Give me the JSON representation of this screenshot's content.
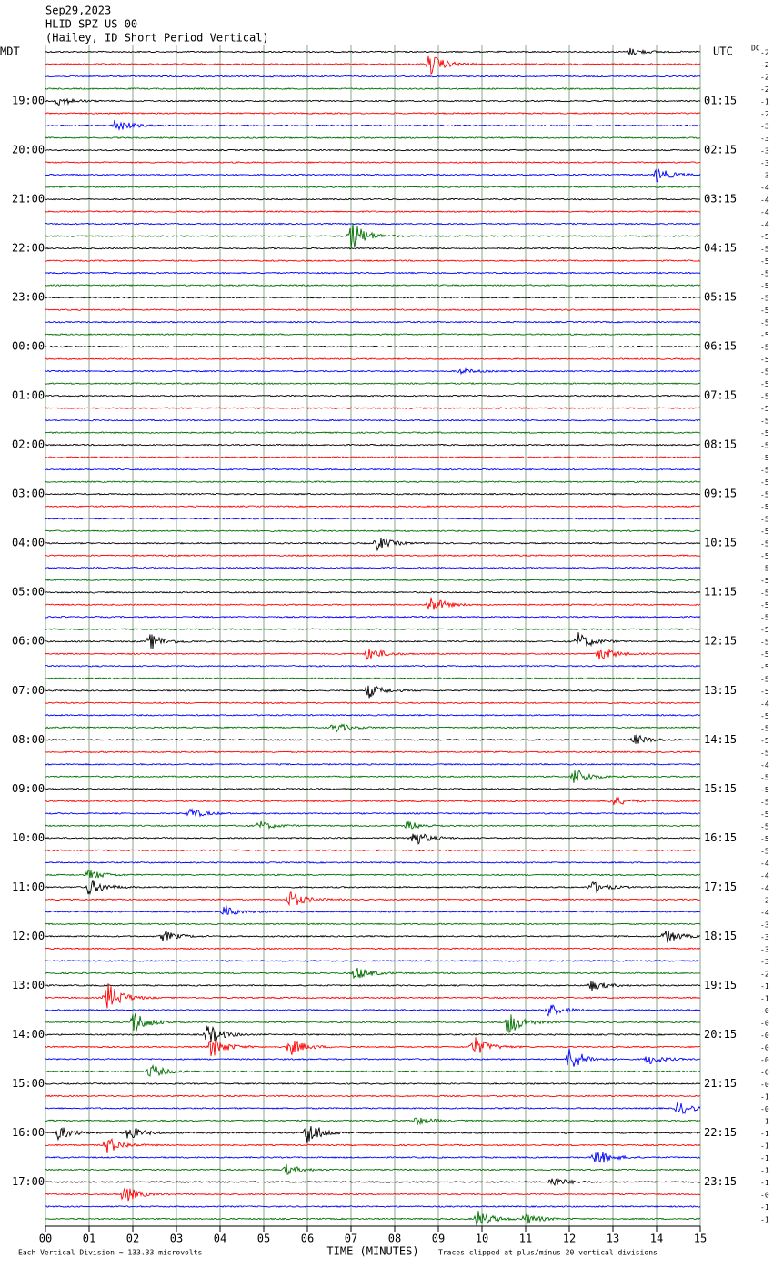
{
  "chart_data": {
    "type": "helicorder",
    "title": [
      "Sep29,2023",
      "HLID SPZ US 00",
      "(Hailey, ID Short Period Vertical)"
    ],
    "left_timezone": "MDT",
    "right_timezone": "UTC",
    "left_hours": [
      "19:00",
      "20:00",
      "21:00",
      "22:00",
      "23:00",
      "00:00",
      "01:00",
      "02:00",
      "03:00",
      "04:00",
      "05:00",
      "06:00",
      "07:00",
      "08:00",
      "09:00",
      "10:00",
      "11:00",
      "12:00",
      "13:00",
      "14:00",
      "15:00",
      "16:00",
      "17:00"
    ],
    "right_hours": [
      "01:15",
      "02:15",
      "03:15",
      "04:15",
      "05:15",
      "06:15",
      "07:15",
      "08:15",
      "09:15",
      "10:15",
      "11:15",
      "12:15",
      "13:15",
      "14:15",
      "15:15",
      "16:15",
      "17:15",
      "18:15",
      "19:15",
      "20:15",
      "21:15",
      "22:15",
      "23:15"
    ],
    "dc_header": "DC",
    "dc_values": [
      "-2",
      "-2",
      "-2",
      "-2",
      "-1",
      "-2",
      "-3",
      "-3",
      "-3",
      "-3",
      "-3",
      "-4",
      "-4",
      "-4",
      "-4",
      "-5",
      "-5",
      "-5",
      "-5",
      "-5",
      "-5",
      "-5",
      "-5",
      "-5",
      "-5",
      "-5",
      "-5",
      "-5",
      "-5",
      "-5",
      "-5",
      "-5",
      "-5",
      "-5",
      "-5",
      "-5",
      "-5",
      "-5",
      "-5",
      "-5",
      "-5",
      "-5",
      "-5",
      "-5",
      "-5",
      "-5",
      "-5",
      "-5",
      "-5",
      "-5",
      "-5",
      "-5",
      "-5",
      "-4",
      "-5",
      "-5",
      "-5",
      "-5",
      "-4",
      "-5",
      "-5",
      "-5",
      "-5",
      "-5",
      "-5",
      "-5",
      "-4",
      "-4",
      "-4",
      "-2",
      "-4",
      "-3",
      "-3",
      "-3",
      "-3",
      "-2",
      "-1",
      "-1",
      "-0",
      "-0",
      "-0",
      "-0",
      "-0",
      "-0",
      "-0",
      "-1",
      "-0",
      "-1",
      "-1",
      "-1",
      "-1",
      "-1",
      "-1",
      "-0",
      "-1",
      "-1"
    ],
    "xlabel": "TIME (MINUTES)",
    "xlim": [
      0,
      15
    ],
    "xticks": [
      {
        "value": 0,
        "label": "00"
      },
      {
        "value": 1,
        "label": "01"
      },
      {
        "value": 2,
        "label": "02"
      },
      {
        "value": 3,
        "label": "03"
      },
      {
        "value": 4,
        "label": "04"
      },
      {
        "value": 5,
        "label": "05"
      },
      {
        "value": 6,
        "label": "06"
      },
      {
        "value": 7,
        "label": "07"
      },
      {
        "value": 8,
        "label": "08"
      },
      {
        "value": 9,
        "label": "09"
      },
      {
        "value": 10,
        "label": "10"
      },
      {
        "value": 11,
        "label": "11"
      },
      {
        "value": 12,
        "label": "12"
      },
      {
        "value": 13,
        "label": "13"
      },
      {
        "value": 14,
        "label": "14"
      },
      {
        "value": 15,
        "label": "15"
      }
    ],
    "colors": [
      "#000000",
      "#ff0000",
      "#0000ff",
      "#007000"
    ],
    "grid": true,
    "scale_note": "Each Vertical Division =  133.33 microvolts",
    "clip_note": "Traces clipped at plus/minus 20 vertical divisions"
  }
}
